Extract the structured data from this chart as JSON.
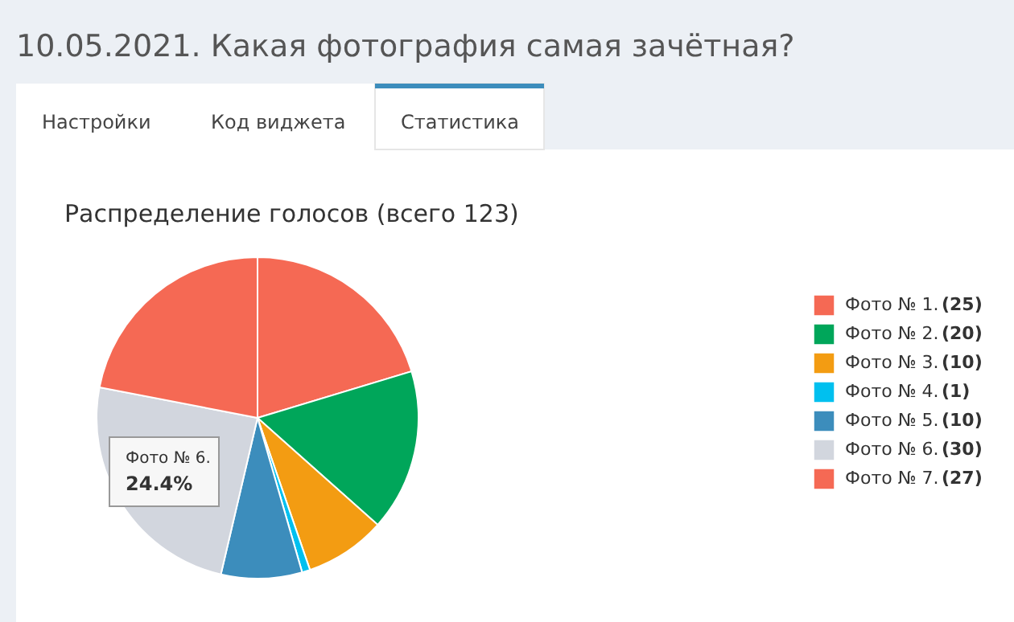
{
  "chart_data": {
    "type": "pie",
    "title": "Распределение голосов (всего 123)",
    "categories": [
      "Фото № 1.",
      "Фото № 2.",
      "Фото № 3.",
      "Фото № 4.",
      "Фото № 5.",
      "Фото № 6.",
      "Фото № 7."
    ],
    "values": [
      25,
      20,
      10,
      1,
      10,
      30,
      27
    ],
    "value_labels": [
      "(25)",
      "(20)",
      "(10)",
      "(1)",
      "(10)",
      "(30)",
      "(27)"
    ],
    "colors": [
      "#f56954",
      "#00a65a",
      "#f39c12",
      "#00c0ef",
      "#3c8dbc",
      "#d2d6de",
      "#f56954"
    ],
    "legend": "right",
    "annotations": [
      "10.05.2021. Какая фотография самая зачётная?",
      "Настройки",
      "Код виджета",
      "Статистика",
      "Фото № 6.",
      "24.4%"
    ]
  }
}
